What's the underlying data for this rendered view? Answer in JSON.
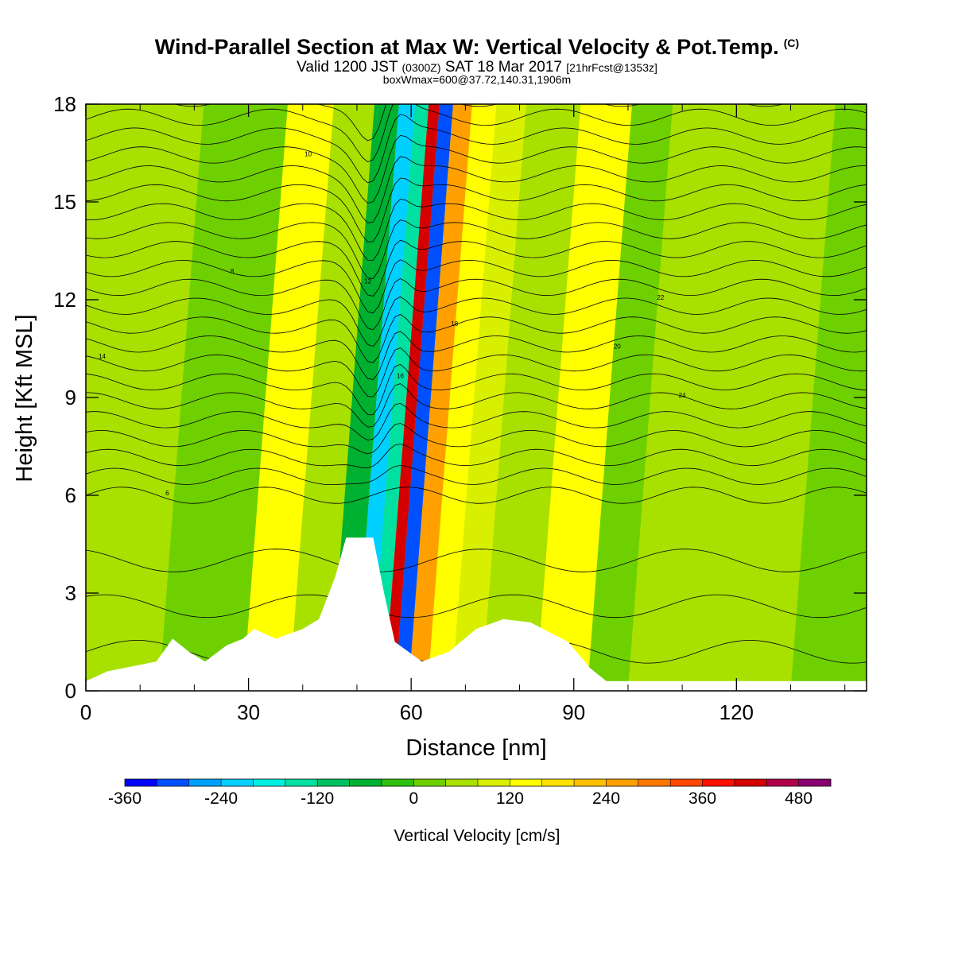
{
  "header": {
    "title": "Wind-Parallel Section at Max W: Vertical Velocity & Pot.Temp.",
    "title_mark": "(C)",
    "valid_prefix": "Valid 1200 JST",
    "valid_utc": "(0300Z)",
    "valid_date": "SAT 18 Mar 2017",
    "forecast": "[21hrFcst@1353z]",
    "box_info": "boxWmax=600@37.72,140.31,1906m"
  },
  "chart_data": {
    "type": "heatmap",
    "xlabel": "Distance [nm]",
    "ylabel": "Height [Kft MSL]",
    "xlim": [
      0,
      144
    ],
    "ylim": [
      0,
      18
    ],
    "x_ticks": [
      0,
      30,
      60,
      90,
      120
    ],
    "y_ticks": [
      0,
      3,
      6,
      9,
      12,
      15,
      18
    ],
    "x_tick_labels": [
      "0",
      "30",
      "60",
      "90",
      "120"
    ],
    "y_tick_labels": [
      "0",
      "3",
      "6",
      "9",
      "12",
      "15",
      "18"
    ],
    "colorbar": {
      "label": "Vertical Velocity [cm/s]",
      "range": [
        -360,
        520
      ],
      "step": 40,
      "tick_values": [
        -360,
        -240,
        -120,
        0,
        120,
        240,
        360,
        480
      ],
      "tick_labels": [
        "-360",
        "-240",
        "-120",
        "0",
        "120",
        "240",
        "360",
        "480"
      ],
      "colors": [
        "#0000ff",
        "#0050ff",
        "#00a0ff",
        "#00d0ff",
        "#00f0e0",
        "#00e0a0",
        "#00c060",
        "#00b030",
        "#30c010",
        "#6ed000",
        "#a8e000",
        "#d8f000",
        "#ffff00",
        "#ffe000",
        "#ffc000",
        "#ffa000",
        "#ff7800",
        "#ff4800",
        "#ff1000",
        "#d40000",
        "#b0004a",
        "#8a0070"
      ]
    },
    "terrain_kft": [
      [
        0,
        0.3
      ],
      [
        4,
        0.6
      ],
      [
        13,
        0.9
      ],
      [
        16,
        1.6
      ],
      [
        19,
        1.2
      ],
      [
        22,
        0.9
      ],
      [
        26,
        1.4
      ],
      [
        29,
        1.6
      ],
      [
        31,
        1.9
      ],
      [
        35,
        1.6
      ],
      [
        40,
        1.9
      ],
      [
        43,
        2.2
      ],
      [
        46,
        3.5
      ],
      [
        48,
        4.7
      ],
      [
        53,
        4.7
      ],
      [
        55,
        3.0
      ],
      [
        57,
        1.5
      ],
      [
        62,
        0.9
      ],
      [
        67,
        1.2
      ],
      [
        72,
        1.9
      ],
      [
        77,
        2.2
      ],
      [
        82,
        2.1
      ],
      [
        89,
        1.5
      ],
      [
        93,
        0.7
      ],
      [
        96,
        0.3
      ],
      [
        144,
        0.3
      ]
    ],
    "series": [
      {
        "name": "vertical velocity",
        "x": [
          2,
          10,
          17,
          25,
          33,
          42,
          48,
          51,
          54,
          56,
          58,
          61,
          65,
          70,
          76,
          90,
          95,
          105,
          115,
          125,
          135
        ],
        "values": [
          40,
          60,
          20,
          30,
          140,
          40,
          -60,
          -220,
          -140,
          420,
          -320,
          260,
          120,
          80,
          40,
          140,
          20,
          70,
          40,
          60,
          20
        ]
      }
    ],
    "contour_labels": [
      "14",
      "6",
      "8",
      "10",
      "12",
      "16",
      "18",
      "20",
      "22",
      "24"
    ]
  }
}
